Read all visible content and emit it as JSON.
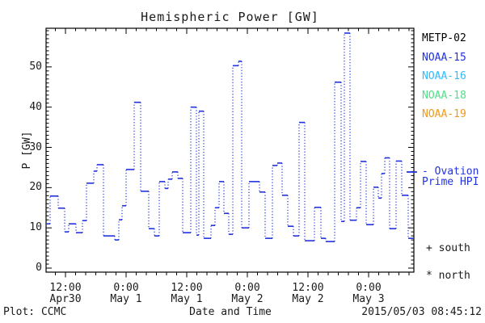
{
  "title": "Hemispheric Power [GW]",
  "colors": {
    "axis": "#000000",
    "line": "#2233DD",
    "noaa16": "#33BBFF",
    "noaa18": "#55DD88",
    "noaa19": "#EE9922",
    "text": "#1a1a1a"
  },
  "y_axis": {
    "label": "P [GW]",
    "ticks": [
      "0",
      "10",
      "20",
      "30",
      "40",
      "50"
    ],
    "tick_values": [
      0,
      10,
      20,
      30,
      40,
      50
    ],
    "minor_step": 1,
    "range": [
      -1,
      59.6
    ]
  },
  "x_axis": {
    "label": "Date and Time",
    "major_ticks": [
      {
        "hours": 12,
        "time": "12:00",
        "date": "Apr30"
      },
      {
        "hours": 24,
        "time": "0:00",
        "date": "May 1"
      },
      {
        "hours": 36,
        "time": "12:00",
        "date": "May 1"
      },
      {
        "hours": 48,
        "time": "0:00",
        "date": "May 2"
      },
      {
        "hours": 60,
        "time": "12:00",
        "date": "May 2"
      },
      {
        "hours": 72,
        "time": "0:00",
        "date": "May 3"
      }
    ],
    "minor_step_hours": 2,
    "range_hours": [
      8.16,
      80.96
    ]
  },
  "legend": {
    "satellites": [
      {
        "label": "METP-02",
        "color": "#000000"
      },
      {
        "label": "NOAA-15",
        "color": "#2233DD"
      },
      {
        "label": "NOAA-16",
        "color": "#33BBFF"
      },
      {
        "label": "NOAA-18",
        "color": "#55DD88"
      },
      {
        "label": "NOAA-19",
        "color": "#EE9922"
      }
    ],
    "line_marker_line1": "- Ovation",
    "line_marker_line2": "Prime HPI",
    "south_marker": "+ south",
    "north_marker": "* north"
  },
  "footer": {
    "left": "Plot: CCMC",
    "timestamp": "2015/05/03 08:45:12"
  },
  "chart_data": {
    "type": "line",
    "step": "post",
    "title": "Hemispheric Power [GW]",
    "xlabel": "Date and Time",
    "ylabel": "P [GW]",
    "x_unit": "hours since 2015-04-30 00:00 UT",
    "xlim": [
      8.16,
      80.96
    ],
    "ylim": [
      -1,
      59.6
    ],
    "grid": false,
    "legend_position": "right-outside",
    "series_name": "Ovation Prime HPI",
    "series_color": "#2233DD",
    "points": [
      [
        8.16,
        11.0
      ],
      [
        8.96,
        17.9
      ],
      [
        10.56,
        14.9
      ],
      [
        11.84,
        9.0
      ],
      [
        12.64,
        11.0
      ],
      [
        14.08,
        8.8
      ],
      [
        15.36,
        11.8
      ],
      [
        16.16,
        21.1
      ],
      [
        17.6,
        24.1
      ],
      [
        18.24,
        25.7
      ],
      [
        19.52,
        8.0
      ],
      [
        21.76,
        7.0
      ],
      [
        22.56,
        12.0
      ],
      [
        23.2,
        15.5
      ],
      [
        24.0,
        24.5
      ],
      [
        25.6,
        41.2
      ],
      [
        26.88,
        19.1
      ],
      [
        28.48,
        9.8
      ],
      [
        29.6,
        8.0
      ],
      [
        30.56,
        21.5
      ],
      [
        31.68,
        19.8
      ],
      [
        32.32,
        22.1
      ],
      [
        33.12,
        23.9
      ],
      [
        34.24,
        22.3
      ],
      [
        35.2,
        8.8
      ],
      [
        36.8,
        40.0
      ],
      [
        37.92,
        8.2
      ],
      [
        38.4,
        39.0
      ],
      [
        39.36,
        7.4
      ],
      [
        40.8,
        10.6
      ],
      [
        41.6,
        15.0
      ],
      [
        42.4,
        21.5
      ],
      [
        43.36,
        13.6
      ],
      [
        44.32,
        8.4
      ],
      [
        45.12,
        50.3
      ],
      [
        46.24,
        51.4
      ],
      [
        46.88,
        10.0
      ],
      [
        48.32,
        21.5
      ],
      [
        50.4,
        18.9
      ],
      [
        51.52,
        7.4
      ],
      [
        52.96,
        25.5
      ],
      [
        53.92,
        26.1
      ],
      [
        54.88,
        18.1
      ],
      [
        56.0,
        10.4
      ],
      [
        57.12,
        8.0
      ],
      [
        58.24,
        36.2
      ],
      [
        59.36,
        6.8
      ],
      [
        61.28,
        15.1
      ],
      [
        62.56,
        7.4
      ],
      [
        63.52,
        6.6
      ],
      [
        65.28,
        46.2
      ],
      [
        66.56,
        11.6
      ],
      [
        67.2,
        58.4
      ],
      [
        68.32,
        11.9
      ],
      [
        69.6,
        15.0
      ],
      [
        70.4,
        26.5
      ],
      [
        71.52,
        10.8
      ],
      [
        72.96,
        20.1
      ],
      [
        73.92,
        17.4
      ],
      [
        74.56,
        23.5
      ],
      [
        75.2,
        27.4
      ],
      [
        76.16,
        9.8
      ],
      [
        77.44,
        26.6
      ],
      [
        78.56,
        18.1
      ],
      [
        79.84,
        7.4
      ]
    ]
  }
}
